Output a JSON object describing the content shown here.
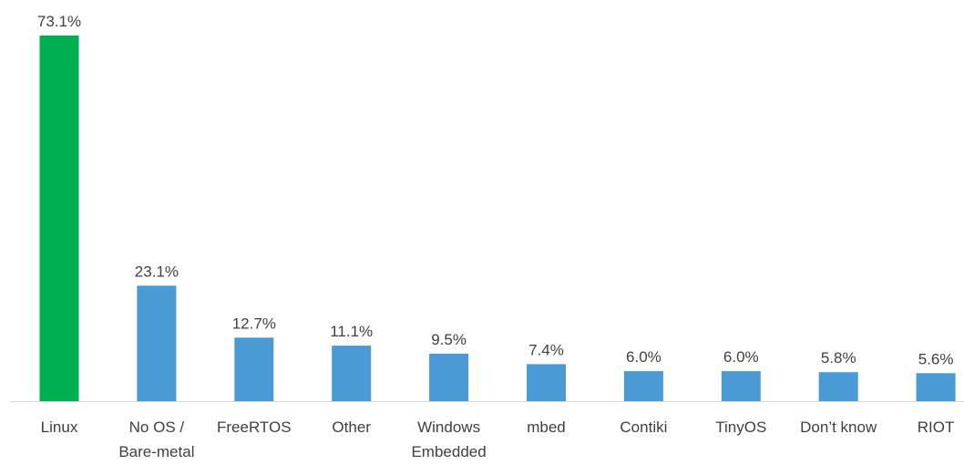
{
  "chart_data": {
    "type": "bar",
    "categories": [
      "Linux",
      "No OS / Bare-metal",
      "FreeRTOS",
      "Other",
      "Windows Embedded",
      "mbed",
      "Contiki",
      "TinyOS",
      "Don’t know",
      "RIOT"
    ],
    "category_lines": [
      [
        "Linux"
      ],
      [
        "No OS /",
        "Bare-metal"
      ],
      [
        "FreeRTOS"
      ],
      [
        "Other"
      ],
      [
        "Windows",
        "Embedded"
      ],
      [
        "mbed"
      ],
      [
        "Contiki"
      ],
      [
        "TinyOS"
      ],
      [
        "Don’t know"
      ],
      [
        "RIOT"
      ]
    ],
    "values": [
      73.1,
      23.1,
      12.7,
      11.1,
      9.5,
      7.4,
      6.0,
      6.0,
      5.8,
      5.6
    ],
    "value_labels": [
      "73.1%",
      "23.1%",
      "12.7%",
      "11.1%",
      "9.5%",
      "7.4%",
      "6.0%",
      "6.0%",
      "5.8%",
      "5.6%"
    ],
    "ylim": [
      0,
      73.1
    ],
    "grid": false,
    "legend": "none",
    "colors": {
      "highlight": "#00B050",
      "bar": "#4A9BD5",
      "axis": "#D9D9D9",
      "text": "#404040"
    },
    "highlight_index": 0
  }
}
